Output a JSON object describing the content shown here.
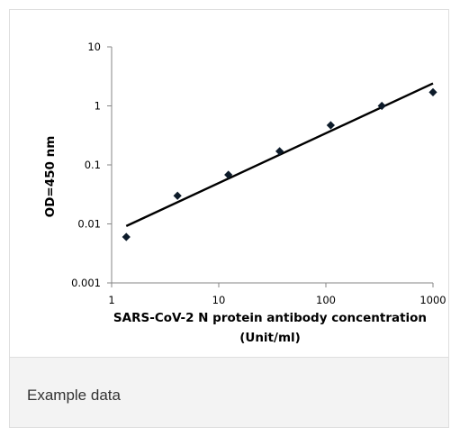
{
  "chart_data": {
    "type": "scatter",
    "xscale": "log",
    "yscale": "log",
    "xlim": [
      1,
      1000
    ],
    "ylim": [
      0.001,
      10
    ],
    "x_ticks": [
      "1",
      "10",
      "100",
      "1000"
    ],
    "y_ticks": [
      "10",
      "1",
      "0.1",
      "0.01",
      "0.001"
    ],
    "xlabel_line1": "SARS-CoV-2 N protein antibody concentration",
    "xlabel_line2": "(Unit/ml)",
    "ylabel": "OD=450 nm",
    "grid": false,
    "points": [
      {
        "x": 1.37,
        "y": 0.006
      },
      {
        "x": 4.12,
        "y": 0.03
      },
      {
        "x": 12.3,
        "y": 0.068
      },
      {
        "x": 37,
        "y": 0.17
      },
      {
        "x": 111,
        "y": 0.47
      },
      {
        "x": 333,
        "y": 1.0
      },
      {
        "x": 1000,
        "y": 1.7
      }
    ],
    "trendline": {
      "x": [
        1.37,
        1000
      ],
      "y": [
        0.0092,
        2.4
      ]
    },
    "marker_color": "#0d1b2a",
    "line_color": "#000000"
  },
  "caption": "Example data"
}
